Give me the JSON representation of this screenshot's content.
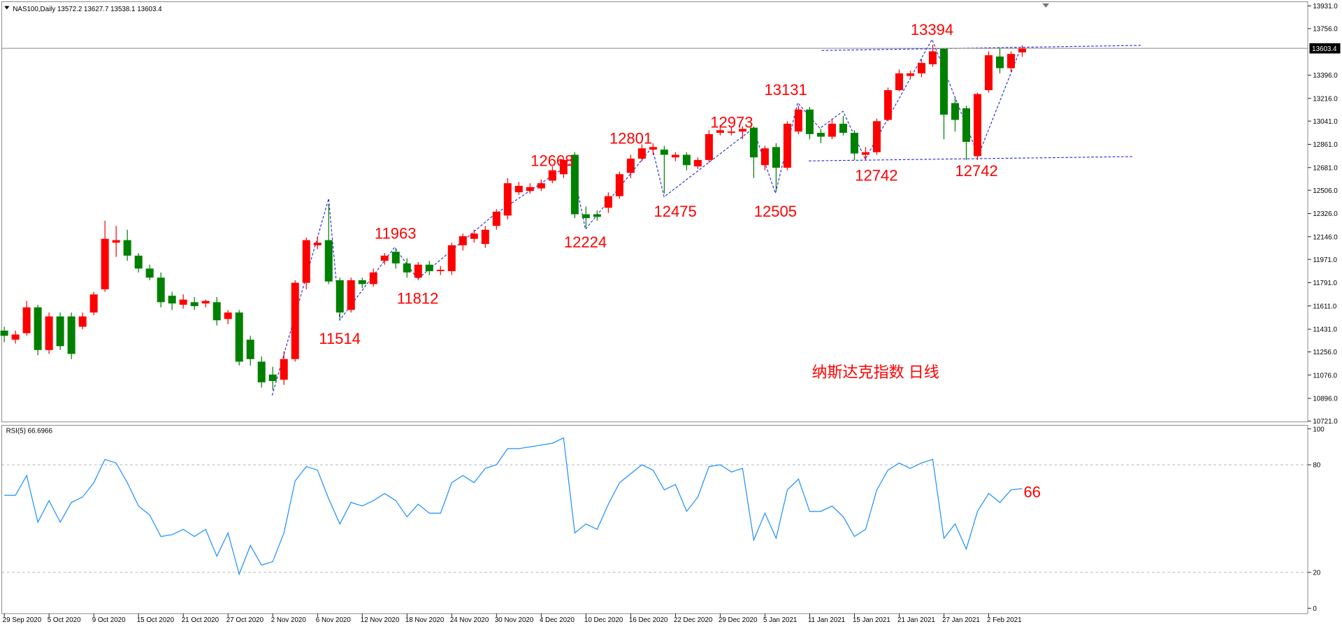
{
  "chart_data": [
    {
      "type": "candlestick",
      "title": "NAS100,Daily  13572.2 13627.7 13538.1 13603.4",
      "categories": [
        "29 Sep 2020",
        null,
        null,
        null,
        "5 Oct 2020",
        null,
        null,
        null,
        "9 Oct 2020",
        null,
        null,
        null,
        "15 Oct 2020",
        null,
        null,
        null,
        "21 Oct 2020",
        null,
        null,
        null,
        "27 Oct 2020",
        null,
        null,
        null,
        "2 Nov 2020",
        null,
        null,
        null,
        "6 Nov 2020",
        null,
        null,
        null,
        "12 Nov 2020",
        null,
        null,
        null,
        "18 Nov 2020",
        null,
        null,
        null,
        "24 Nov 2020",
        null,
        null,
        null,
        "30 Nov 2020",
        null,
        null,
        null,
        "4 Dec 2020",
        null,
        null,
        null,
        "10 Dec 2020",
        null,
        null,
        null,
        "16 Dec 2020",
        null,
        null,
        null,
        "22 Dec 2020",
        null,
        null,
        null,
        "29 Dec 2020",
        null,
        null,
        null,
        "5 Jan 2021",
        null,
        null,
        null,
        "11 Jan 2021",
        null,
        null,
        null,
        "15 Jan 2021",
        null,
        null,
        null,
        "21 Jan 2021",
        null,
        null,
        null,
        "27 Jan 2021",
        null,
        null,
        null,
        "2 Feb 2021",
        null,
        null,
        null
      ],
      "open": [
        11420,
        11350,
        11400,
        11600,
        11270,
        11530,
        11530,
        11450,
        11560,
        11740,
        12100,
        12120,
        12000,
        11900,
        11830,
        11690,
        11620,
        11640,
        11630,
        11640,
        11510,
        11560,
        11350,
        11180,
        11080,
        11040,
        11200,
        11790,
        12080,
        12120,
        11810,
        11580,
        11810,
        11780,
        11960,
        12030,
        11940,
        11830,
        11930,
        11880,
        11880,
        12080,
        12130,
        12090,
        12230,
        12310,
        12490,
        12500,
        12520,
        12580,
        12630,
        12780,
        12320,
        12320,
        12370,
        12460,
        12640,
        12750,
        12820,
        12820,
        12760,
        12780,
        12690,
        12740,
        12950,
        12950,
        12960,
        12990,
        12700,
        12840,
        12680,
        12960,
        13130,
        12950,
        12920,
        13020,
        12950,
        12780,
        12800,
        13050,
        13280,
        13390,
        13410,
        13480,
        13600,
        13180,
        13140,
        12770,
        13280,
        13540,
        13450,
        13572.2
      ],
      "high": [
        11450,
        11420,
        11650,
        11620,
        11560,
        11560,
        11560,
        11560,
        11720,
        12270,
        12230,
        12200,
        12020,
        11930,
        11870,
        11720,
        11700,
        11680,
        11660,
        11680,
        11580,
        11580,
        11380,
        11220,
        11140,
        11260,
        11810,
        12140,
        12150,
        12400,
        11830,
        11830,
        11830,
        11900,
        12020,
        12060,
        11980,
        11950,
        11960,
        11920,
        12100,
        12170,
        12200,
        12230,
        12360,
        12600,
        12570,
        12560,
        12590,
        12690,
        12760,
        12800,
        12380,
        12350,
        12490,
        12650,
        12780,
        12860,
        12870,
        12850,
        12800,
        12800,
        12760,
        12970,
        13010,
        13000,
        13000,
        13000,
        12850,
        12870,
        13040,
        13160,
        13150,
        12980,
        13060,
        13080,
        12970,
        12840,
        13060,
        13300,
        13440,
        13430,
        13520,
        13630,
        13600,
        13220,
        13160,
        13260,
        13580,
        13610,
        13580,
        13627.7
      ],
      "low": [
        11330,
        11320,
        11380,
        11230,
        11240,
        11270,
        11200,
        11430,
        11540,
        11720,
        11990,
        11960,
        11870,
        11810,
        11600,
        11580,
        11590,
        11580,
        11600,
        11460,
        11470,
        11150,
        11150,
        10980,
        10960,
        11000,
        11180,
        11740,
        12050,
        11780,
        11510,
        11560,
        11750,
        11760,
        11930,
        11900,
        11830,
        11810,
        11850,
        11850,
        11850,
        12040,
        12100,
        12060,
        12200,
        12280,
        12470,
        12480,
        12500,
        12560,
        12600,
        12290,
        12220,
        12270,
        12330,
        12440,
        12600,
        12730,
        12780,
        12480,
        12730,
        12660,
        12670,
        12720,
        12930,
        12930,
        12900,
        12600,
        12660,
        12500,
        12660,
        12940,
        12900,
        12870,
        12900,
        12930,
        12740,
        12740,
        12780,
        13040,
        13270,
        13370,
        13380,
        13460,
        12900,
        12960,
        12740,
        12740,
        13260,
        13410,
        13420,
        13538.1
      ],
      "close": [
        11380,
        11390,
        11600,
        11270,
        11530,
        11300,
        11240,
        11530,
        11700,
        12130,
        12120,
        12000,
        11900,
        11830,
        11640,
        11630,
        11660,
        11610,
        11650,
        11500,
        11560,
        11180,
        11200,
        11020,
        11030,
        11200,
        11790,
        12120,
        12100,
        11800,
        11560,
        11810,
        11780,
        11870,
        12000,
        11940,
        11870,
        11930,
        11880,
        11890,
        12080,
        12150,
        12170,
        12200,
        12340,
        12560,
        12540,
        12530,
        12560,
        12660,
        12740,
        12320,
        12290,
        12300,
        12460,
        12630,
        12750,
        12830,
        12840,
        12780,
        12780,
        12700,
        12740,
        12940,
        12970,
        12960,
        12980,
        12760,
        12830,
        12680,
        13020,
        13130,
        12940,
        12920,
        13020,
        12950,
        12790,
        12800,
        13040,
        13280,
        13410,
        13410,
        13490,
        13580,
        13090,
        13050,
        12880,
        13250,
        13550,
        13450,
        13560,
        13603.4
      ],
      "up_color": "#ff0000",
      "down_color": "#008000",
      "ylim": [
        10714,
        13964
      ],
      "yticks": [
        {
          "value": 13931,
          "label": "13931.0"
        },
        {
          "value": 13756,
          "label": "13756.0"
        },
        {
          "value": 13396,
          "label": "13396.0"
        },
        {
          "value": 13216,
          "label": "13216.0"
        },
        {
          "value": 13041,
          "label": "13041.0"
        },
        {
          "value": 12861,
          "label": "12861.0"
        },
        {
          "value": 12681,
          "label": "12681.0"
        },
        {
          "value": 12506,
          "label": "12506.0"
        },
        {
          "value": 12326,
          "label": "12326.0"
        },
        {
          "value": 12146,
          "label": "12146.0"
        },
        {
          "value": 11971,
          "label": "11971.0"
        },
        {
          "value": 11791,
          "label": "11791.0"
        },
        {
          "value": 11611,
          "label": "11611.0"
        },
        {
          "value": 11431,
          "label": "11431.0"
        },
        {
          "value": 11256,
          "label": "11256.0"
        },
        {
          "value": 11076,
          "label": "11076.0"
        },
        {
          "value": 10896,
          "label": "10896.0"
        },
        {
          "value": 10721,
          "label": "10721.0"
        }
      ],
      "last_price": {
        "value": 13603.4,
        "label": "13603.4"
      },
      "annotations": [
        "13394",
        "13131",
        "12973",
        "12801",
        "12668",
        "11963",
        "12224",
        "12475",
        "12505",
        "12742",
        "12742",
        "11812",
        "11514",
        "纳斯达克指数 日线"
      ]
    },
    {
      "type": "line",
      "title": "RSI(5) 66.6966",
      "values": [
        63,
        63,
        74,
        48,
        60,
        48,
        59,
        62,
        70,
        83,
        81,
        70,
        57,
        52,
        40,
        41,
        44,
        40,
        44,
        29,
        42,
        19,
        35,
        24,
        26,
        42,
        71,
        79,
        77,
        61,
        47,
        59,
        57,
        60,
        64,
        60,
        51,
        58,
        53,
        53,
        70,
        74,
        70,
        78,
        80,
        89,
        89,
        90,
        91,
        92,
        95,
        42,
        47,
        44,
        58,
        70,
        75,
        80,
        77,
        66,
        69,
        54,
        62,
        79,
        80,
        76,
        78,
        38,
        53,
        39,
        66,
        72,
        54,
        54,
        57,
        51,
        40,
        44,
        66,
        77,
        81,
        78,
        81,
        83,
        39,
        47,
        33,
        54,
        64,
        59,
        66,
        66.6966
      ],
      "color": "#1e90ff",
      "ylim": [
        -3,
        102
      ],
      "yticks": [
        0,
        20,
        80,
        100
      ],
      "annotations": [
        "66"
      ]
    }
  ]
}
